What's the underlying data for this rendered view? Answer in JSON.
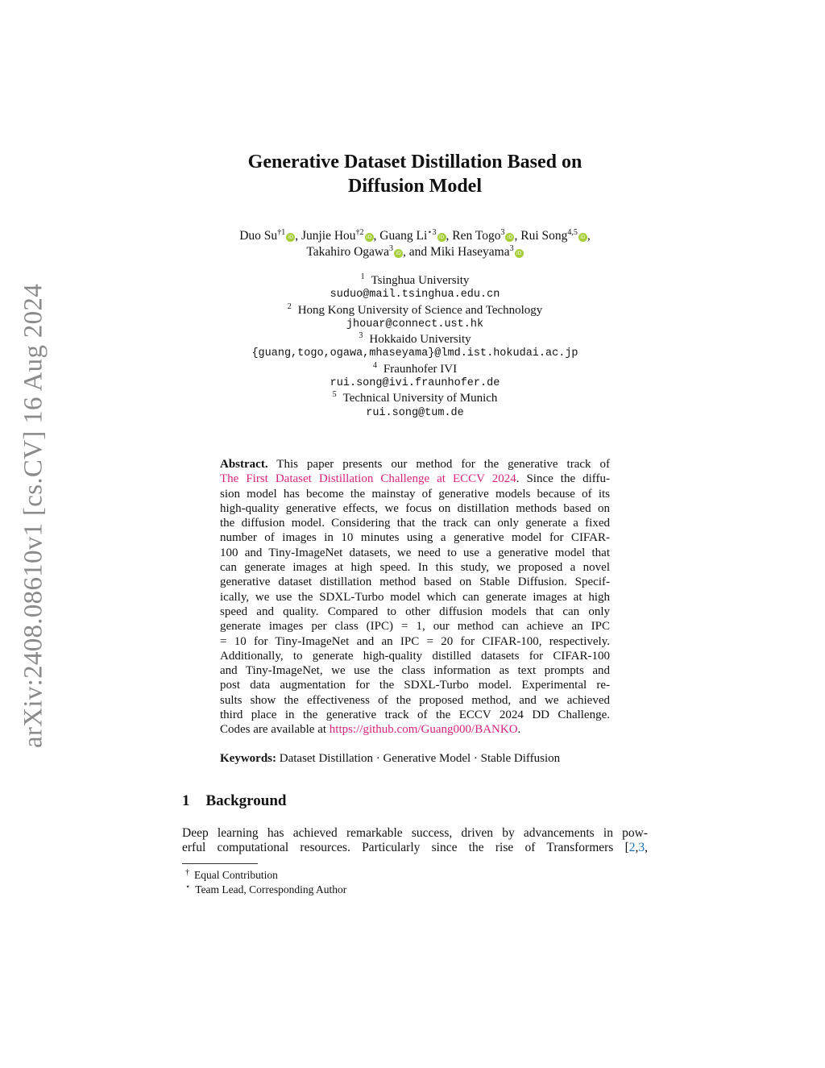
{
  "sidebar": {
    "arxiv_id": "arXiv:2408.08610v1  [cs.CV]  16 Aug 2024"
  },
  "title": {
    "line1": "Generative Dataset Distillation Based on",
    "line2": "Diffusion Model"
  },
  "authors": [
    {
      "name": "Duo Su",
      "sup": "†1"
    },
    {
      "name": "Junjie Hou",
      "sup": "†2"
    },
    {
      "name": "Guang Li",
      "sup": "⋆3"
    },
    {
      "name": "Ren Togo",
      "sup": "3"
    },
    {
      "name": "Rui Song",
      "sup": "4,5"
    },
    {
      "name": "Takahiro Ogawa",
      "sup": "3"
    },
    {
      "name": "Miki Haseyama",
      "sup": "3"
    }
  ],
  "authors_and": "and",
  "orcid_icon_color": "#a6ce39",
  "affiliations": [
    {
      "num": "1",
      "name": "Tsinghua University",
      "email": "suduo@mail.tsinghua.edu.cn"
    },
    {
      "num": "2",
      "name": "Hong Kong University of Science and Technology",
      "email": "jhouar@connect.ust.hk"
    },
    {
      "num": "3",
      "name": "Hokkaido University",
      "email": "{guang,togo,ogawa,mhaseyama}@lmd.ist.hokudai.ac.jp"
    },
    {
      "num": "4",
      "name": "Fraunhofer IVI",
      "email": "rui.song@ivi.fraunhofer.de"
    },
    {
      "num": "5",
      "name": "Technical University of Munich",
      "email": "rui.song@tum.de"
    }
  ],
  "abstract": {
    "label": "Abstract.",
    "link_color": "#d6247b",
    "lines": [
      [
        {
          "t": " This paper presents our method for the generative track of"
        }
      ],
      [
        {
          "t": "The First Dataset Distillation Challenge at ECCV 2024",
          "link": true
        },
        {
          "t": ". Since the diffu-"
        }
      ],
      [
        {
          "t": "sion model has become the mainstay of generative models because of its"
        }
      ],
      [
        {
          "t": "high-quality generative effects, we focus on distillation methods based on"
        }
      ],
      [
        {
          "t": "the diffusion model. Considering that the track can only generate a fixed"
        }
      ],
      [
        {
          "t": "number of images in 10 minutes using a generative model for CIFAR-"
        }
      ],
      [
        {
          "t": "100 and Tiny-ImageNet datasets, we need to use a generative model that"
        }
      ],
      [
        {
          "t": "can generate images at high speed. In this study, we proposed a novel"
        }
      ],
      [
        {
          "t": "generative dataset distillation method based on Stable Diffusion. Specif-"
        }
      ],
      [
        {
          "t": "ically, we use the SDXL-Turbo model which can generate images at high"
        }
      ],
      [
        {
          "t": "speed and quality. Compared to other diffusion models that can only"
        }
      ],
      [
        {
          "t": "generate images per class (IPC) = 1, our method can achieve an IPC"
        }
      ],
      [
        {
          "t": "= 10 for Tiny-ImageNet and an IPC = 20 for CIFAR-100, respectively."
        }
      ],
      [
        {
          "t": "Additionally, to generate high-quality distilled datasets for CIFAR-100"
        }
      ],
      [
        {
          "t": "and Tiny-ImageNet, we use the class information as text prompts and"
        }
      ],
      [
        {
          "t": "post data augmentation for the SDXL-Turbo model. Experimental re-"
        }
      ],
      [
        {
          "t": "sults show the effectiveness of the proposed method, and we achieved"
        }
      ],
      [
        {
          "t": "third place in the generative track of the ECCV 2024 DD Challenge."
        }
      ],
      [
        {
          "t": "Codes are available at "
        },
        {
          "t": "https://github.com/Guang000/BANKO",
          "link": true
        },
        {
          "t": "."
        }
      ]
    ]
  },
  "keywords": {
    "label": "Keywords:",
    "text": "Dataset Distillation · Generative Model · Stable Diffusion"
  },
  "section": {
    "number": "1",
    "title": "Background"
  },
  "body": {
    "line1": "Deep learning has achieved remarkable success, driven by advancements in pow-",
    "line2_text": "erful computational resources. Particularly since the rise of Transformers [",
    "cite1": "2",
    "cite2": "3",
    "cite_color": "#1a6fb0"
  },
  "footnotes": [
    {
      "mark": "†",
      "text": "Equal Contribution"
    },
    {
      "mark": "⋆",
      "text": "Team Lead, Corresponding Author"
    }
  ]
}
